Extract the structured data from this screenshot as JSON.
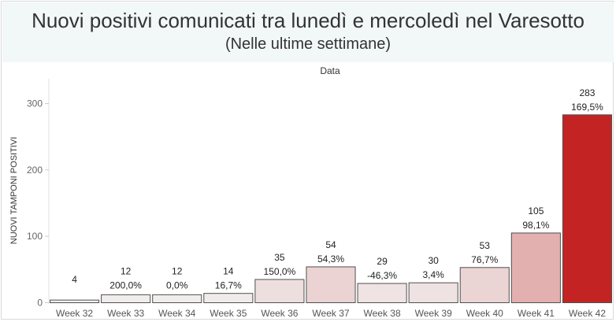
{
  "header": {
    "title": "Nuovi positivi comunicati tra lunedì e mercoledì nel Varesotto",
    "subtitle": "(Nelle ultime settimane)"
  },
  "chart_data": {
    "type": "bar",
    "title": "Nuovi positivi comunicati tra lunedì e mercoledì nel Varesotto",
    "subtitle": "(Nelle ultime settimane)",
    "column_header": "Data",
    "ylabel": "NUOVI TAMPONI POSITIVI",
    "ylim": [
      0,
      330
    ],
    "yticks": [
      0,
      100,
      200,
      300
    ],
    "grid": false,
    "categories": [
      "Week 32",
      "Week 33",
      "Week 34",
      "Week 35",
      "Week 36",
      "Week 37",
      "Week 38",
      "Week 39",
      "Week 40",
      "Week 41",
      "Week 42"
    ],
    "values": [
      4,
      12,
      12,
      14,
      35,
      54,
      29,
      30,
      53,
      105,
      283
    ],
    "value_labels": [
      "4",
      "12",
      "12",
      "14",
      "35",
      "54",
      "29",
      "30",
      "53",
      "105",
      "283"
    ],
    "change_labels": [
      "",
      "200,0%",
      "0,0%",
      "16,7%",
      "150,0%",
      "54,3%",
      "-46,3%",
      "3,4%",
      "76,7%",
      "98,1%",
      "169,5%"
    ],
    "color_scale": {
      "low": "#f2f2f2",
      "high": "#c42324",
      "edge": "#505050"
    }
  }
}
